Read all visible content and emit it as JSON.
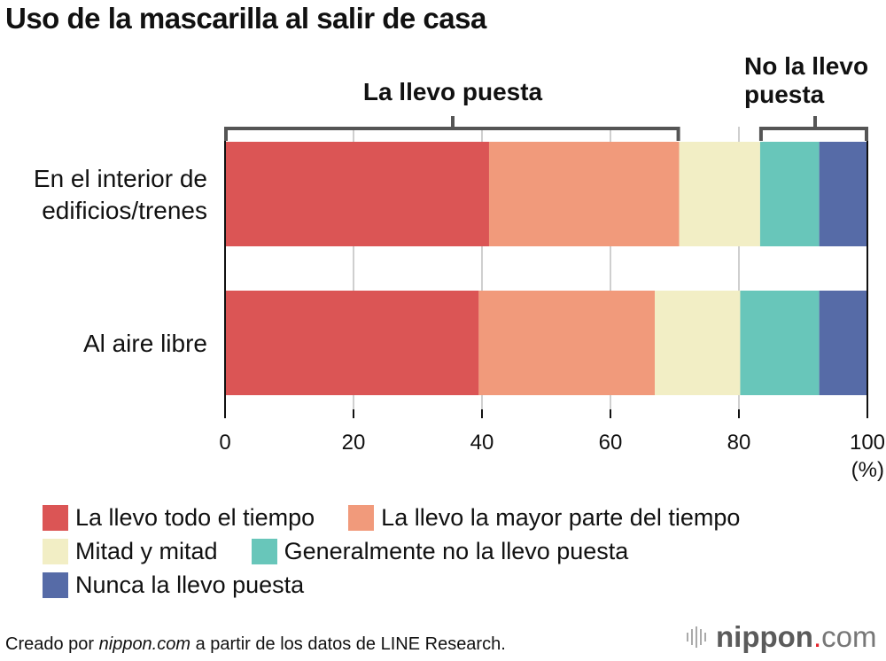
{
  "chart_data": {
    "type": "bar",
    "orientation": "horizontal",
    "stacked": true,
    "title": "Uso de la mascarilla al salir de casa",
    "categories": [
      "En el interior de edificios/trenes",
      "Al aire libre"
    ],
    "category_lines": [
      [
        "En el interior de",
        "edificios/trenes"
      ],
      [
        "Al aire libre"
      ]
    ],
    "series": [
      {
        "name": "La llevo todo el tiempo",
        "color": "#db5555",
        "values": [
          41.1,
          39.5
        ]
      },
      {
        "name": "La llevo la mayor parte del tiempo",
        "color": "#f19a7b",
        "values": [
          29.6,
          27.4
        ]
      },
      {
        "name": "Mitad y mitad",
        "color": "#f2eec5",
        "values": [
          12.6,
          13.3
        ]
      },
      {
        "name": "Generalmente no la llevo puesta",
        "color": "#68c6ba",
        "values": [
          9.2,
          12.3
        ]
      },
      {
        "name": "Nunca la llevo puesta",
        "color": "#566ba7",
        "values": [
          7.5,
          7.5
        ]
      }
    ],
    "xlim": [
      0,
      100
    ],
    "xticks": [
      "0",
      "20",
      "40",
      "60",
      "80",
      "100"
    ],
    "xunit": "(%)",
    "grid": true,
    "legend": "bottom",
    "brackets": [
      {
        "label": [
          "La llevo puesta"
        ],
        "from": 0,
        "to": 70.7
      },
      {
        "label": [
          "No la llevo",
          "puesta"
        ],
        "from": 83.3,
        "to": 100
      }
    ]
  },
  "footer": {
    "prefix": "Creado por ",
    "source_site": "nippon.com",
    "suffix": " a partir de los datos de LINE Research."
  },
  "logo": {
    "name": "nippon",
    "dot": ".",
    "tld": "com"
  }
}
